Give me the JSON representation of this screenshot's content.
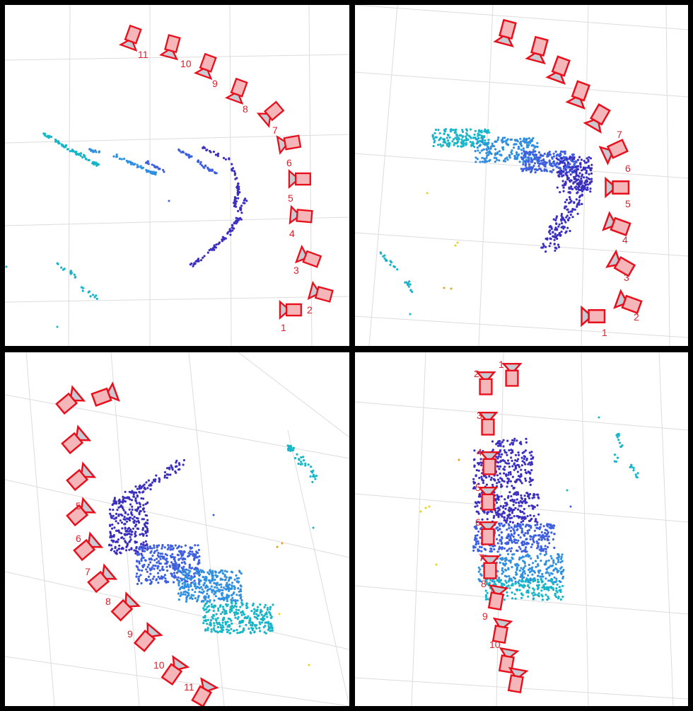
{
  "colors": {
    "camera_stroke": "#e8101c",
    "camera_fill": "#f5b6b9",
    "camera_face": "#c9c9d2",
    "label": "#e0202a",
    "grid": "#dcdcdc",
    "point_dark": "#3b2fc0",
    "point_blue": "#3d5fe0",
    "point_mid": "#2f8fe0",
    "point_cyan": "#16b5c8",
    "point_yellow": "#e8d21a",
    "point_orange": "#e0a020"
  },
  "panels": [
    {
      "name": "panel-top-left",
      "camera_labels": [
        "1",
        "2",
        "3",
        "4",
        "5",
        "6",
        "7",
        "8",
        "9",
        "10",
        "11"
      ]
    },
    {
      "name": "panel-top-right",
      "camera_labels": [
        "1",
        "2",
        "3",
        "4",
        "5",
        "6",
        "7"
      ]
    },
    {
      "name": "panel-bottom-left",
      "camera_labels": [
        "5",
        "6",
        "7",
        "8",
        "9",
        "10",
        "11"
      ]
    },
    {
      "name": "panel-bottom-right",
      "camera_labels": [
        "1",
        "2",
        "3",
        "4",
        "5",
        "6",
        "7",
        "8",
        "9",
        "10",
        "11"
      ]
    }
  ]
}
